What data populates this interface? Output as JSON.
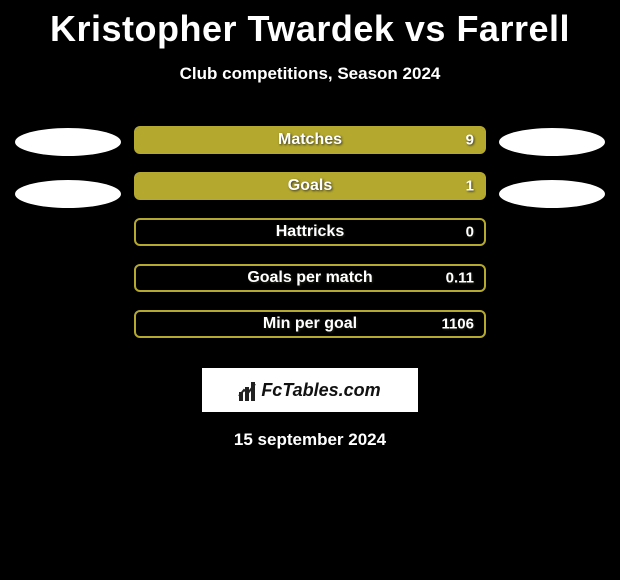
{
  "title": "Kristopher Twardek vs Farrell",
  "subtitle": "Club competitions, Season 2024",
  "bars": [
    {
      "label": "Matches",
      "value": "9",
      "fill_pct": 100
    },
    {
      "label": "Goals",
      "value": "1",
      "fill_pct": 100
    },
    {
      "label": "Hattricks",
      "value": "0",
      "fill_pct": 0
    },
    {
      "label": "Goals per match",
      "value": "0.11",
      "fill_pct": 0
    },
    {
      "label": "Min per goal",
      "value": "1106",
      "fill_pct": 0
    }
  ],
  "bar_style": {
    "border_color": "#b4a82e",
    "fill_color": "#b4a82e",
    "empty_color": "transparent"
  },
  "left_ellipses_count": 2,
  "right_ellipses_count": 2,
  "logo_text": "FcTables.com",
  "date_text": "15 september 2024",
  "colors": {
    "background": "#000000",
    "text": "#ffffff",
    "ellipse": "#ffffff",
    "logo_bg": "#ffffff",
    "logo_text": "#111111"
  }
}
